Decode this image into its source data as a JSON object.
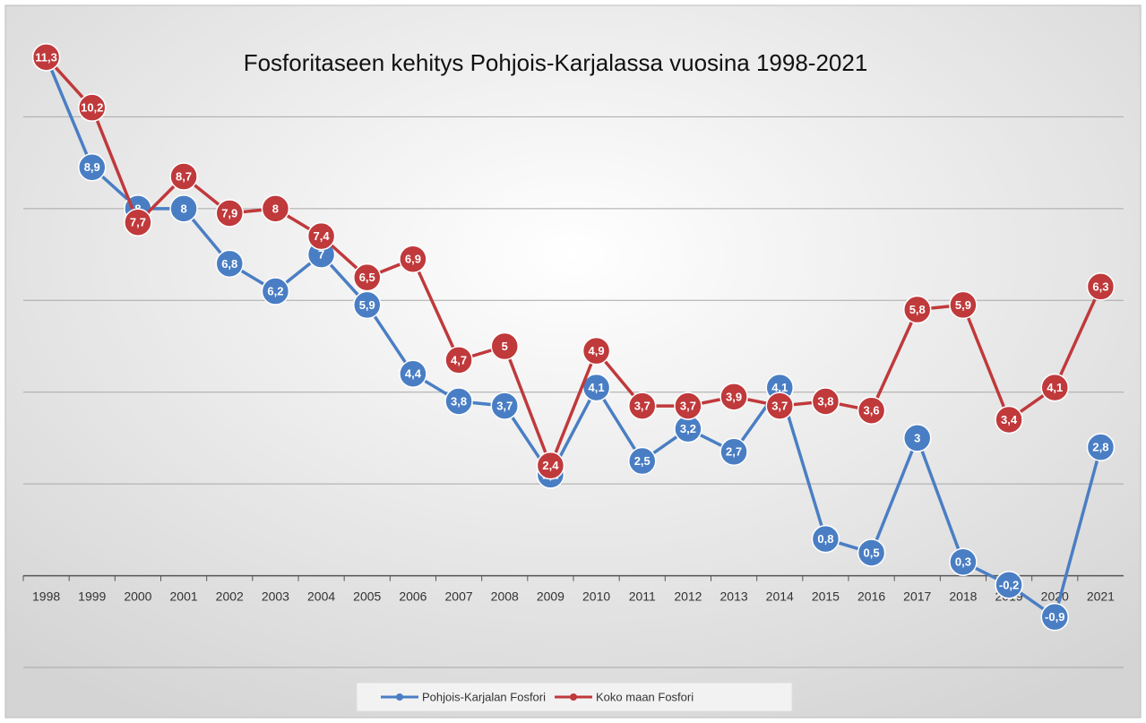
{
  "chart_data": {
    "type": "line",
    "title": "Fosforitaseen kehitys Pohjois-Karjalassa vuosina 1998-2021",
    "categories": [
      "1998",
      "1999",
      "2000",
      "2001",
      "2002",
      "2003",
      "2004",
      "2005",
      "2006",
      "2007",
      "2008",
      "2009",
      "2010",
      "2011",
      "2012",
      "2013",
      "2014",
      "2015",
      "2016",
      "2017",
      "2018",
      "2019",
      "2020",
      "2021"
    ],
    "series": [
      {
        "name": "Pohjois-Karjalan Fosfori",
        "color": "#4a7ec4",
        "values": [
          11.3,
          8.9,
          8,
          8,
          6.8,
          6.2,
          7,
          5.9,
          4.4,
          3.8,
          3.7,
          2.2,
          4.1,
          2.5,
          3.2,
          2.7,
          4.1,
          0.8,
          0.5,
          3,
          0.3,
          -0.2,
          -0.9,
          2.8
        ],
        "value_labels": [
          "11,3",
          "8,9",
          "8",
          "8",
          "6,8",
          "6,2",
          "7",
          "5,9",
          "4,4",
          "3,8",
          "3,7",
          "2,2",
          "4,1",
          "2,5",
          "3,2",
          "2,7",
          "4,1",
          "0,8",
          "0,5",
          "3",
          "0,3",
          "-0,2",
          "-0,9",
          "2,8"
        ]
      },
      {
        "name": "Koko maan Fosfori",
        "color": "#c0393b",
        "values": [
          11.3,
          10.2,
          7.7,
          8.7,
          7.9,
          8,
          7.4,
          6.5,
          6.9,
          4.7,
          5,
          2.4,
          4.9,
          3.7,
          3.7,
          3.9,
          3.7,
          3.8,
          3.6,
          5.8,
          5.9,
          3.4,
          4.1,
          6.3
        ],
        "value_labels": [
          "11,3",
          "10,2",
          "7,7",
          "8,7",
          "7,9",
          "8",
          "7,4",
          "6,5",
          "6,9",
          "4,7",
          "5",
          "2,4",
          "4,9",
          "3,7",
          "3,7",
          "3,9",
          "3,7",
          "3,8",
          "3,6",
          "5,8",
          "5,9",
          "3,4",
          "4,1",
          "6,3"
        ]
      }
    ],
    "ylim": [
      -2,
      12
    ],
    "yticks": [
      -2,
      0,
      2,
      4,
      6,
      8,
      10
    ],
    "grid": true,
    "legend": "bottom"
  }
}
